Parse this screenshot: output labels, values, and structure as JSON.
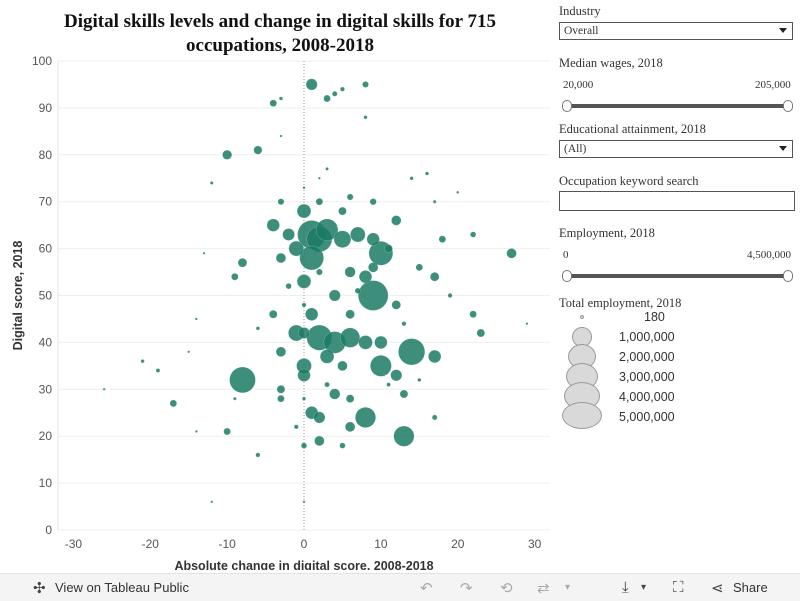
{
  "chart_data": {
    "type": "scatter",
    "title": "Digital skills levels and change in digital skills for 715 occupations, 2008-2018",
    "xlabel": "Absolute change in digital score, 2008-2018",
    "ylabel": "Digital score, 2018",
    "xlim": [
      -32,
      32
    ],
    "ylim": [
      0,
      100
    ],
    "xticks": [
      -30,
      -20,
      -10,
      0,
      10,
      20,
      30
    ],
    "yticks": [
      0,
      10,
      20,
      30,
      40,
      50,
      60,
      70,
      80,
      90,
      100
    ],
    "grid": true,
    "reference_line_x": 0,
    "color": "#1b7a64",
    "points": [
      {
        "x": 1,
        "y": 95,
        "e": 400000
      },
      {
        "x": 5,
        "y": 94,
        "e": 60000
      },
      {
        "x": 8,
        "y": 95,
        "e": 120000
      },
      {
        "x": -4,
        "y": 91,
        "e": 150000
      },
      {
        "x": 3,
        "y": 92,
        "e": 150000
      },
      {
        "x": 4,
        "y": 93,
        "e": 80000
      },
      {
        "x": -3,
        "y": 92,
        "e": 40000
      },
      {
        "x": 8,
        "y": 88,
        "e": 40000
      },
      {
        "x": -10,
        "y": 80,
        "e": 280000
      },
      {
        "x": -6,
        "y": 81,
        "e": 220000
      },
      {
        "x": -3,
        "y": 84,
        "e": 15000
      },
      {
        "x": 3,
        "y": 77,
        "e": 30000
      },
      {
        "x": -12,
        "y": 74,
        "e": 30000
      },
      {
        "x": 0,
        "y": 73,
        "e": 20000
      },
      {
        "x": 2,
        "y": 75,
        "e": 15000
      },
      {
        "x": 14,
        "y": 75,
        "e": 40000
      },
      {
        "x": 16,
        "y": 76,
        "e": 40000
      },
      {
        "x": 17,
        "y": 70,
        "e": 30000
      },
      {
        "x": 20,
        "y": 72,
        "e": 20000
      },
      {
        "x": -3,
        "y": 70,
        "e": 120000
      },
      {
        "x": 2,
        "y": 70,
        "e": 150000
      },
      {
        "x": 6,
        "y": 71,
        "e": 120000
      },
      {
        "x": 9,
        "y": 70,
        "e": 130000
      },
      {
        "x": 5,
        "y": 68,
        "e": 200000
      },
      {
        "x": -4,
        "y": 65,
        "e": 500000
      },
      {
        "x": -2,
        "y": 63,
        "e": 450000
      },
      {
        "x": 0,
        "y": 68,
        "e": 600000
      },
      {
        "x": 1,
        "y": 63,
        "e": 2500000
      },
      {
        "x": 2,
        "y": 62,
        "e": 2000000
      },
      {
        "x": 3,
        "y": 64,
        "e": 1500000
      },
      {
        "x": 5,
        "y": 62,
        "e": 900000
      },
      {
        "x": 7,
        "y": 63,
        "e": 700000
      },
      {
        "x": 9,
        "y": 62,
        "e": 500000
      },
      {
        "x": 10,
        "y": 59,
        "e": 1800000
      },
      {
        "x": 12,
        "y": 66,
        "e": 300000
      },
      {
        "x": 11,
        "y": 60,
        "e": 200000
      },
      {
        "x": 1,
        "y": 58,
        "e": 1800000
      },
      {
        "x": -1,
        "y": 60,
        "e": 700000
      },
      {
        "x": -3,
        "y": 58,
        "e": 300000
      },
      {
        "x": -8,
        "y": 57,
        "e": 250000
      },
      {
        "x": -9,
        "y": 54,
        "e": 150000
      },
      {
        "x": 0,
        "y": 53,
        "e": 600000
      },
      {
        "x": 6,
        "y": 55,
        "e": 350000
      },
      {
        "x": 9,
        "y": 56,
        "e": 300000
      },
      {
        "x": 8,
        "y": 54,
        "e": 500000
      },
      {
        "x": 15,
        "y": 56,
        "e": 150000
      },
      {
        "x": 17,
        "y": 54,
        "e": 250000
      },
      {
        "x": 22,
        "y": 63,
        "e": 100000
      },
      {
        "x": 27,
        "y": 59,
        "e": 300000
      },
      {
        "x": 18,
        "y": 62,
        "e": 150000
      },
      {
        "x": 9,
        "y": 50,
        "e": 2800000
      },
      {
        "x": 4,
        "y": 50,
        "e": 400000
      },
      {
        "x": 1,
        "y": 46,
        "e": 500000
      },
      {
        "x": -4,
        "y": 46,
        "e": 200000
      },
      {
        "x": 6,
        "y": 46,
        "e": 250000
      },
      {
        "x": 12,
        "y": 48,
        "e": 250000
      },
      {
        "x": 22,
        "y": 46,
        "e": 150000
      },
      {
        "x": 23,
        "y": 42,
        "e": 200000
      },
      {
        "x": 0,
        "y": 42,
        "e": 400000
      },
      {
        "x": -1,
        "y": 42,
        "e": 800000
      },
      {
        "x": 2,
        "y": 41,
        "e": 2000000
      },
      {
        "x": 4,
        "y": 40,
        "e": 1500000
      },
      {
        "x": 6,
        "y": 41,
        "e": 1200000
      },
      {
        "x": 8,
        "y": 40,
        "e": 600000
      },
      {
        "x": 10,
        "y": 40,
        "e": 500000
      },
      {
        "x": 14,
        "y": 38,
        "e": 2200000
      },
      {
        "x": 17,
        "y": 37,
        "e": 500000
      },
      {
        "x": 3,
        "y": 37,
        "e": 600000
      },
      {
        "x": -3,
        "y": 38,
        "e": 300000
      },
      {
        "x": 0,
        "y": 35,
        "e": 700000
      },
      {
        "x": 0,
        "y": 33,
        "e": 500000
      },
      {
        "x": 5,
        "y": 35,
        "e": 300000
      },
      {
        "x": 10,
        "y": 35,
        "e": 1400000
      },
      {
        "x": 12,
        "y": 33,
        "e": 400000
      },
      {
        "x": -8,
        "y": 32,
        "e": 2100000
      },
      {
        "x": -3,
        "y": 30,
        "e": 200000
      },
      {
        "x": -3,
        "y": 28,
        "e": 150000
      },
      {
        "x": 4,
        "y": 29,
        "e": 350000
      },
      {
        "x": 6,
        "y": 28,
        "e": 200000
      },
      {
        "x": 13,
        "y": 29,
        "e": 200000
      },
      {
        "x": -17,
        "y": 27,
        "e": 150000
      },
      {
        "x": -10,
        "y": 21,
        "e": 150000
      },
      {
        "x": 1,
        "y": 25,
        "e": 500000
      },
      {
        "x": 2,
        "y": 24,
        "e": 400000
      },
      {
        "x": 8,
        "y": 24,
        "e": 1300000
      },
      {
        "x": 6,
        "y": 22,
        "e": 300000
      },
      {
        "x": 13,
        "y": 20,
        "e": 1300000
      },
      {
        "x": 2,
        "y": 19,
        "e": 300000
      },
      {
        "x": 0,
        "y": 18,
        "e": 100000
      },
      {
        "x": 5,
        "y": 18,
        "e": 100000
      },
      {
        "x": -6,
        "y": 16,
        "e": 60000
      },
      {
        "x": 17,
        "y": 24,
        "e": 80000
      },
      {
        "x": -21,
        "y": 36,
        "e": 40000
      },
      {
        "x": -19,
        "y": 34,
        "e": 50000
      },
      {
        "x": -15,
        "y": 38,
        "e": 15000
      },
      {
        "x": -14,
        "y": 21,
        "e": 15000
      },
      {
        "x": -26,
        "y": 30,
        "e": 8000
      },
      {
        "x": 29,
        "y": 44,
        "e": 8000
      },
      {
        "x": -12,
        "y": 6,
        "e": 5000
      },
      {
        "x": 0,
        "y": 6,
        "e": 3000
      },
      {
        "x": -13,
        "y": 59,
        "e": 15000
      },
      {
        "x": -14,
        "y": 45,
        "e": 10000
      },
      {
        "x": -2,
        "y": 52,
        "e": 100000
      },
      {
        "x": 2,
        "y": 55,
        "e": 120000
      },
      {
        "x": 7,
        "y": 51,
        "e": 100000
      },
      {
        "x": 13,
        "y": 44,
        "e": 60000
      },
      {
        "x": 19,
        "y": 50,
        "e": 60000
      },
      {
        "x": -6,
        "y": 43,
        "e": 40000
      },
      {
        "x": -9,
        "y": 28,
        "e": 30000
      },
      {
        "x": 11,
        "y": 31,
        "e": 50000
      },
      {
        "x": 15,
        "y": 32,
        "e": 40000
      },
      {
        "x": 0,
        "y": 48,
        "e": 60000
      },
      {
        "x": 0,
        "y": 28,
        "e": 40000
      },
      {
        "x": -1,
        "y": 22,
        "e": 60000
      },
      {
        "x": 3,
        "y": 31,
        "e": 80000
      }
    ]
  },
  "filters": {
    "industry_label": "Industry",
    "industry_value": "Overall",
    "wages_label": "Median wages, 2018",
    "wages_min": "20,000",
    "wages_max": "205,000",
    "education_label": "Educational attainment, 2018",
    "education_value": "(All)",
    "search_label": "Occupation keyword search",
    "search_value": "",
    "employment_label": "Employment, 2018",
    "employment_min": "0",
    "employment_max": "4,500,000"
  },
  "legend": {
    "title": "Total employment, 2018",
    "items": [
      {
        "label": "180",
        "value": 180
      },
      {
        "label": "1,000,000",
        "value": 1000000
      },
      {
        "label": "2,000,000",
        "value": 2000000
      },
      {
        "label": "3,000,000",
        "value": 3000000
      },
      {
        "label": "4,000,000",
        "value": 4000000
      },
      {
        "label": "5,000,000",
        "value": 5000000
      }
    ]
  },
  "footer": {
    "view_link": "View on Tableau Public",
    "share_label": "Share",
    "icons": [
      "tableau-icon",
      "undo-icon",
      "redo-icon",
      "revert-icon",
      "refresh-icon",
      "download-icon",
      "fullscreen-icon",
      "share-icon"
    ]
  }
}
